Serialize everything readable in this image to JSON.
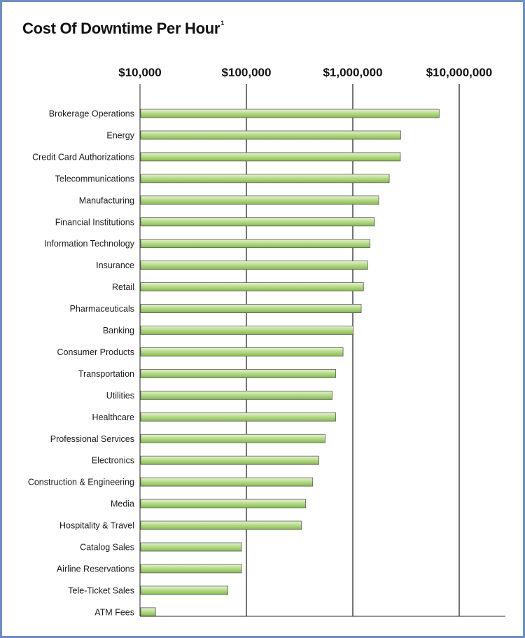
{
  "colors": {
    "frame": "#6d8fc3",
    "bar_top": "#e7f4d2",
    "bar_bottom": "#86b94f",
    "bar_edge": "#5b5b5b",
    "grid": "#2a2a2a"
  },
  "chart_data": {
    "type": "bar",
    "orientation": "horizontal",
    "title": "Cost Of Downtime Per Hour",
    "title_superscript": "1",
    "xscale": "log",
    "xlim": [
      10000,
      35000000
    ],
    "xticks": [
      10000,
      100000,
      1000000,
      10000000
    ],
    "xtick_labels": [
      "$10,000",
      "$100,000",
      "$1,000,000",
      "$10,000,000"
    ],
    "tick_position": "top",
    "grid": true,
    "categories": [
      "Brokerage Operations",
      "Energy",
      "Credit Card Authorizations",
      "Telecommunications",
      "Manufacturing",
      "Financial Institutions",
      "Information Technology",
      "Insurance",
      "Retail",
      "Pharmaceuticals",
      "Banking",
      "Consumer Products",
      "Transportation",
      "Utilities",
      "Healthcare",
      "Professional Services",
      "Electronics",
      "Construction & Engineering",
      "Media",
      "Hospitality & Travel",
      "Catalog Sales",
      "Airline Reservations",
      "Tele-Ticket Sales",
      "ATM Fees"
    ],
    "values": [
      6480000,
      2820000,
      2800000,
      2200000,
      1750000,
      1600000,
      1450000,
      1380000,
      1260000,
      1200000,
      1010000,
      810000,
      690000,
      640000,
      690000,
      550000,
      480000,
      420000,
      360000,
      330000,
      90000,
      90000,
      67000,
      14000
    ]
  }
}
